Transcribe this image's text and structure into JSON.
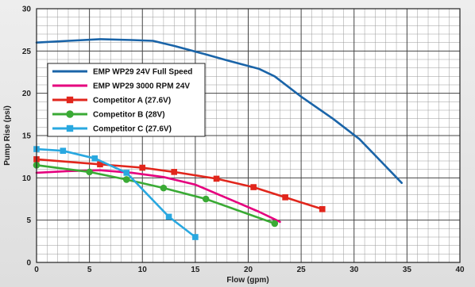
{
  "chart_data": {
    "type": "line",
    "xlabel": "Flow (gpm)",
    "ylabel": "Pump Rise (psi)",
    "xlim": [
      0,
      40
    ],
    "ylim": [
      0,
      30
    ],
    "x_ticks": [
      0,
      5,
      10,
      15,
      20,
      25,
      30,
      35,
      40
    ],
    "y_ticks": [
      0,
      5,
      10,
      15,
      20,
      25,
      30
    ],
    "grid": true,
    "legend_position": "upper-left",
    "series": [
      {
        "name": "EMP WP29 24V Full Speed",
        "color": "#1a64a8",
        "marker": "none",
        "points": [
          [
            0,
            26.0
          ],
          [
            3,
            26.2
          ],
          [
            6,
            26.4
          ],
          [
            9,
            26.3
          ],
          [
            11,
            26.2
          ],
          [
            13,
            25.6
          ],
          [
            16,
            24.6
          ],
          [
            18,
            23.9
          ],
          [
            21,
            22.9
          ],
          [
            22.5,
            22.0
          ],
          [
            25,
            19.6
          ],
          [
            28,
            17.0
          ],
          [
            30.5,
            14.6
          ],
          [
            32.5,
            12.0
          ],
          [
            34.5,
            9.4
          ]
        ]
      },
      {
        "name": "EMP WP29 3000 RPM 24V",
        "color": "#e5007e",
        "marker": "none",
        "points": [
          [
            0,
            10.6
          ],
          [
            3,
            10.8
          ],
          [
            6,
            10.9
          ],
          [
            9,
            10.6
          ],
          [
            12,
            10.1
          ],
          [
            15,
            9.2
          ],
          [
            18,
            7.6
          ],
          [
            21,
            6.0
          ],
          [
            23,
            4.8
          ]
        ]
      },
      {
        "name": "Competitor A (27.6V)",
        "color": "#e1261c",
        "marker": "square",
        "points": [
          [
            0,
            12.2
          ],
          [
            6,
            11.6
          ],
          [
            10,
            11.2
          ],
          [
            13,
            10.7
          ],
          [
            17,
            9.9
          ],
          [
            20.5,
            8.9
          ],
          [
            23.5,
            7.7
          ],
          [
            27,
            6.3
          ]
        ]
      },
      {
        "name": "Competitor B (28V)",
        "color": "#3aaa35",
        "marker": "circle",
        "points": [
          [
            0,
            11.5
          ],
          [
            5,
            10.7
          ],
          [
            8.5,
            9.8
          ],
          [
            12,
            8.8
          ],
          [
            16,
            7.5
          ],
          [
            22.5,
            4.6
          ]
        ]
      },
      {
        "name": "Competitor C (27.6V)",
        "color": "#29a8e0",
        "marker": "square",
        "points": [
          [
            0,
            13.4
          ],
          [
            2.5,
            13.2
          ],
          [
            5.5,
            12.3
          ],
          [
            8.5,
            10.6
          ],
          [
            12.5,
            5.4
          ],
          [
            15,
            3.0
          ]
        ]
      }
    ]
  }
}
